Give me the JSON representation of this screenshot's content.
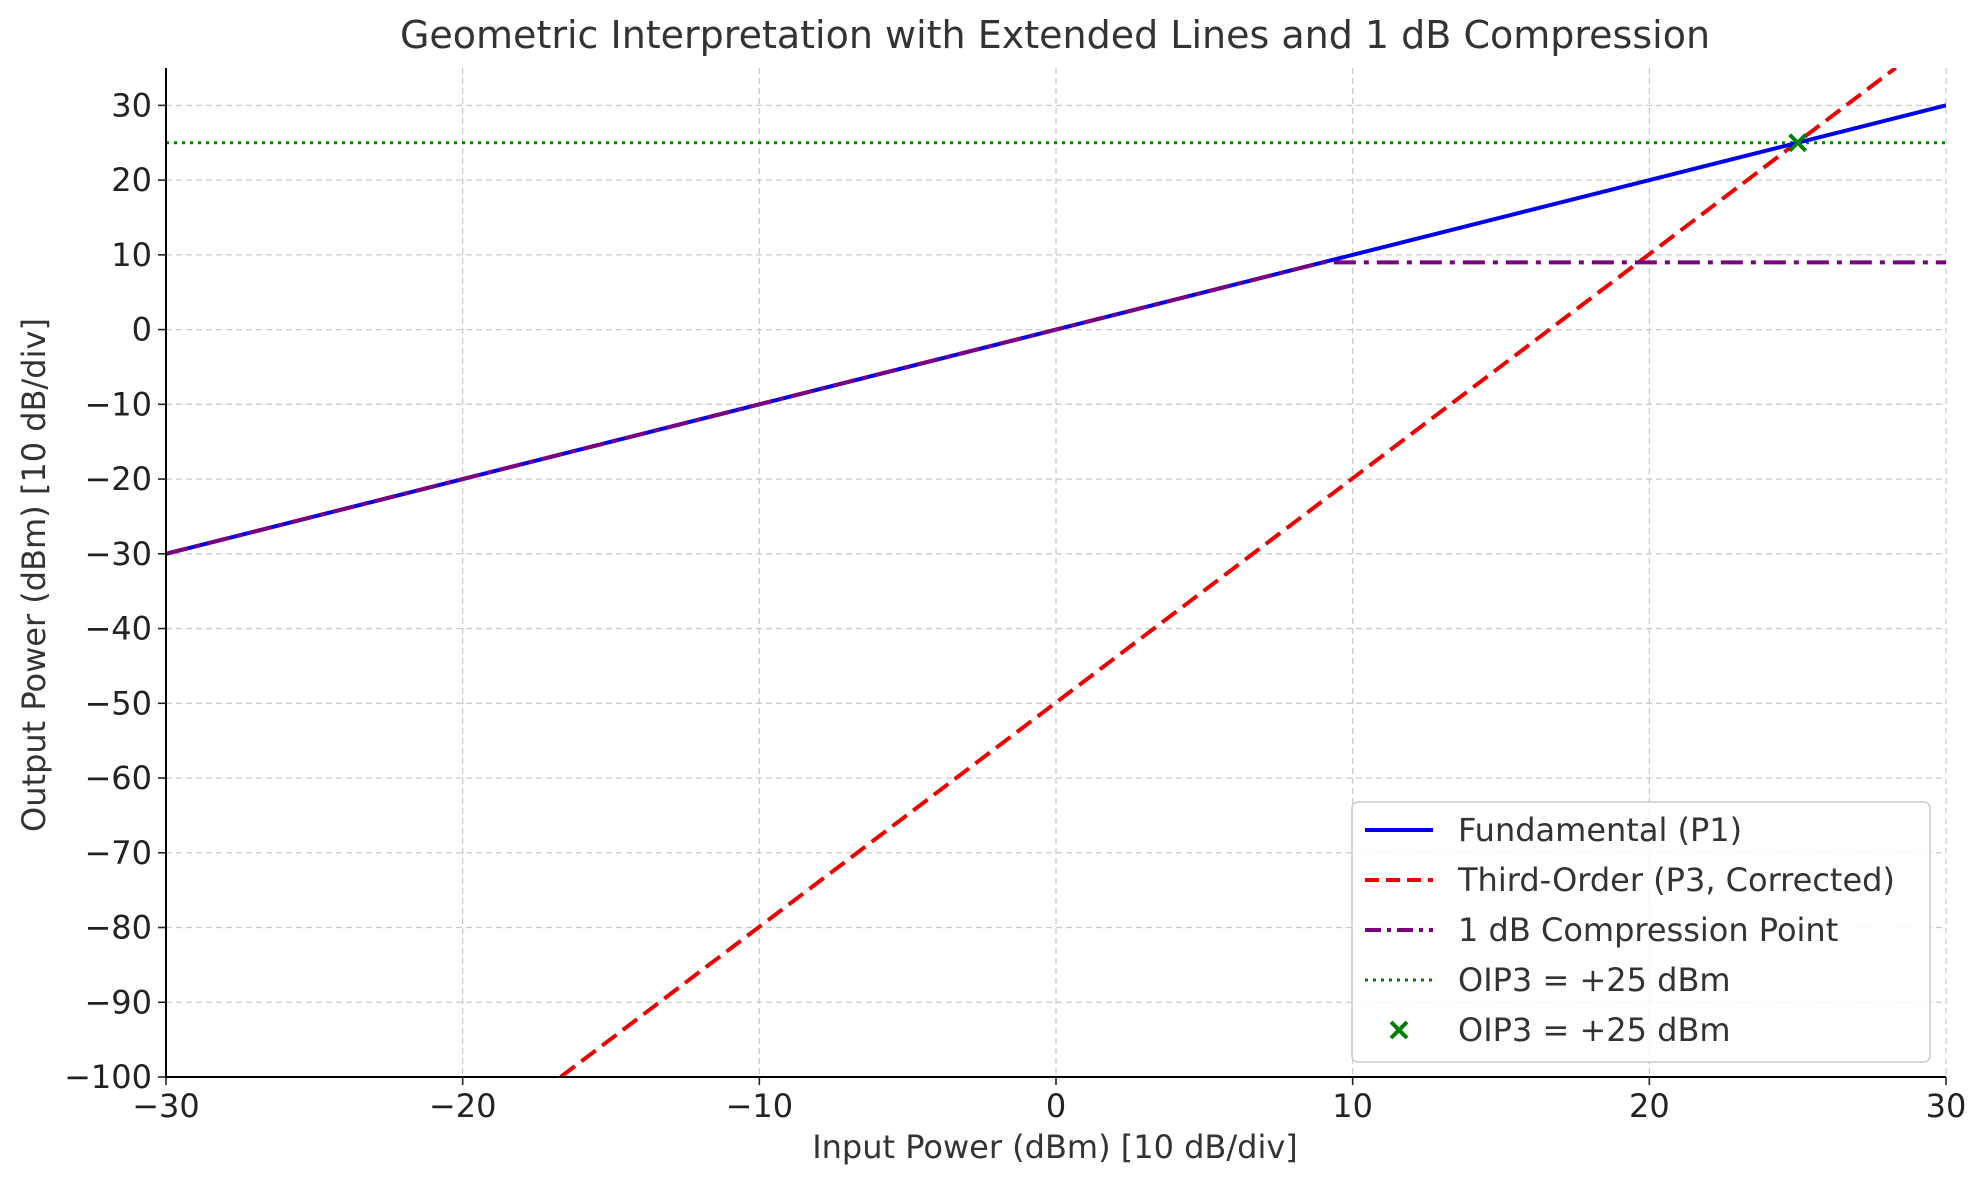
{
  "chart_data": {
    "type": "line",
    "title": "Geometric Interpretation with Extended Lines and 1 dB Compression",
    "xlabel": "Input Power (dBm) [10 dB/div]",
    "ylabel": "Output Power (dBm) [10 dB/div]",
    "xlim": [
      -30,
      30
    ],
    "ylim": [
      -100,
      35
    ],
    "xticks": [
      -30,
      -20,
      -10,
      0,
      10,
      20,
      30
    ],
    "yticks": [
      -100,
      -90,
      -80,
      -70,
      -60,
      -50,
      -40,
      -30,
      -20,
      -10,
      0,
      10,
      20,
      30
    ],
    "grid": true,
    "legend_position": "lower-right",
    "series": [
      {
        "name": "Fundamental (P1)",
        "style": "solid",
        "color": "#0000ee",
        "x": [
          -30,
          30
        ],
        "y": [
          -30,
          30
        ]
      },
      {
        "name": "Third-Order (P3, Corrected)",
        "style": "dashed",
        "color": "#ee0000",
        "x": [
          -16.7,
          28.3
        ],
        "y": [
          -100,
          35
        ]
      },
      {
        "name": "1 dB Compression Point",
        "style": "dashdot",
        "color": "#7b0080",
        "x": [
          -30,
          9,
          30
        ],
        "y": [
          -30,
          9,
          9
        ]
      },
      {
        "name": "OIP3 = +25 dBm",
        "style": "dotted",
        "color": "#008000",
        "x": [
          -30,
          30
        ],
        "y": [
          25,
          25
        ]
      },
      {
        "name": "OIP3 = +25 dBm",
        "style": "marker-x",
        "color": "#008000",
        "x": [
          25
        ],
        "y": [
          25
        ]
      }
    ]
  }
}
